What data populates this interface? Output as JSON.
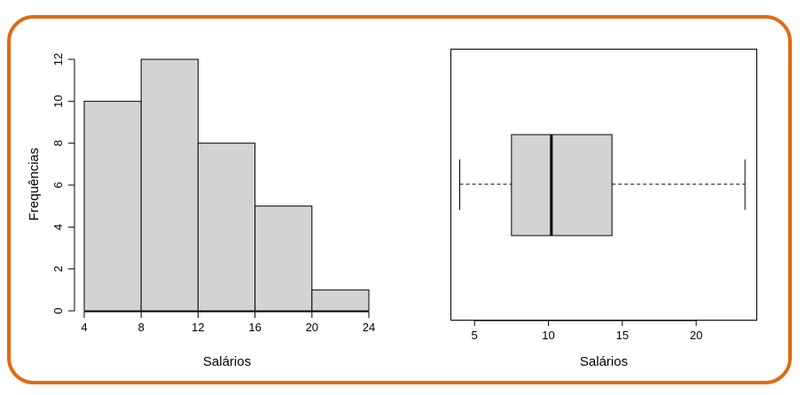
{
  "colors": {
    "frame_border": "#e06a10",
    "fill": "#d3d3d3",
    "stroke": "#000000"
  },
  "chart_data": [
    {
      "type": "bar",
      "subtype": "histogram",
      "bin_edges": [
        4,
        8,
        12,
        16,
        20,
        24
      ],
      "values": [
        10,
        12,
        8,
        5,
        1
      ],
      "xlabel": "Salários",
      "ylabel": "Frequências",
      "xticks": [
        "4",
        "8",
        "12",
        "16",
        "20",
        "24"
      ],
      "yticks": [
        "0",
        "2",
        "4",
        "6",
        "8",
        "10",
        "12"
      ],
      "xlim": [
        4,
        24
      ],
      "ylim": [
        0,
        12
      ],
      "grid": false
    },
    {
      "type": "boxplot",
      "orientation": "horizontal",
      "min": 4.0,
      "q1": 7.5,
      "median": 10.2,
      "q3": 14.3,
      "max": 23.3,
      "xlabel": "Salários",
      "xticks": [
        "5",
        "10",
        "15",
        "20"
      ],
      "xlim": [
        3.4,
        24.1
      ],
      "grid": false
    }
  ]
}
